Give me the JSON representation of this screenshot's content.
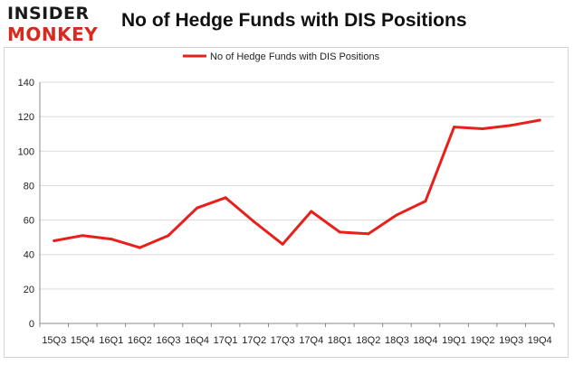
{
  "logo": {
    "line1": "INSIDER",
    "line2": "MONKEY"
  },
  "colors": {
    "series": "#e8201c",
    "grid": "#d9d9d9",
    "axis": "#888888",
    "logo_red": "#d62a1e"
  },
  "chart_data": {
    "type": "line",
    "title": "No of Hedge Funds with DIS Positions",
    "xlabel": "",
    "ylabel": "",
    "categories": [
      "15Q3",
      "15Q4",
      "16Q1",
      "16Q2",
      "16Q3",
      "16Q4",
      "17Q1",
      "17Q2",
      "17Q3",
      "17Q4",
      "18Q1",
      "18Q2",
      "18Q3",
      "18Q4",
      "19Q1",
      "19Q2",
      "19Q3",
      "19Q4"
    ],
    "series": [
      {
        "name": "No of Hedge Funds with DIS Positions",
        "values": [
          48,
          51,
          49,
          44,
          51,
          67,
          73,
          59,
          46,
          65,
          53,
          52,
          63,
          71,
          114,
          113,
          115,
          118
        ]
      }
    ],
    "ylim": [
      0,
      140
    ],
    "yticks": [
      0,
      20,
      40,
      60,
      80,
      100,
      120,
      140
    ],
    "grid": "horizontal",
    "legend": "top-center"
  }
}
